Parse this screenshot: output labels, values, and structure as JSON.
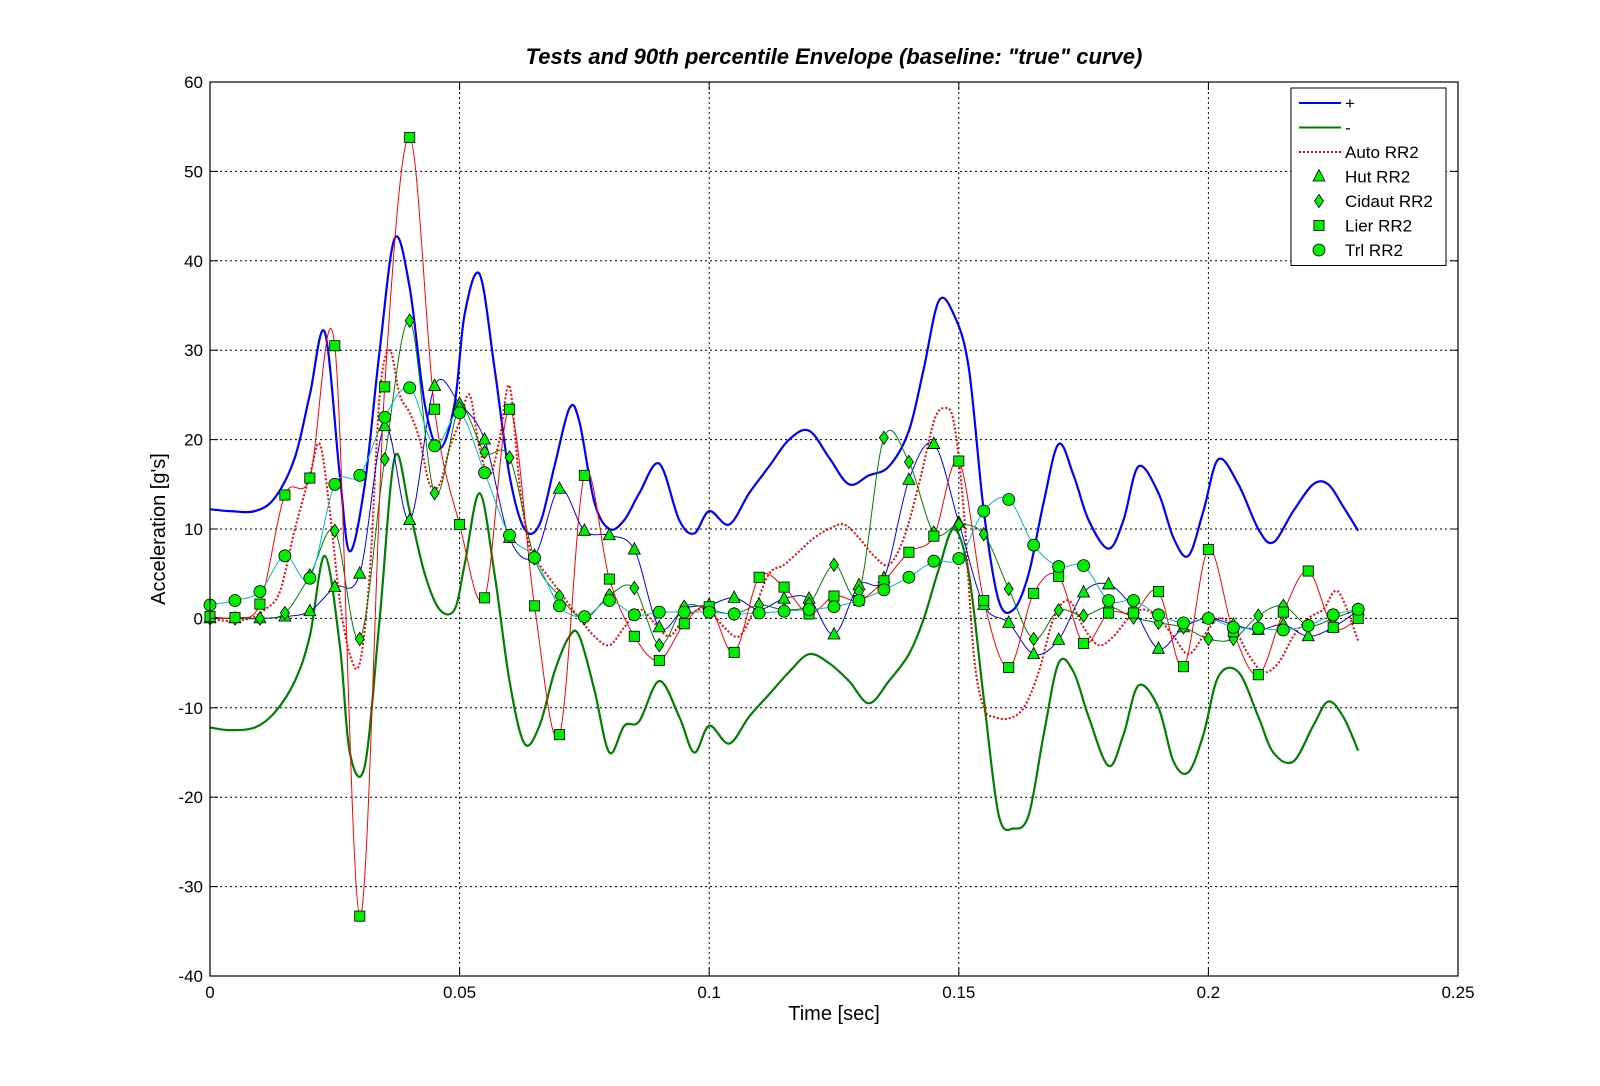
{
  "chart_data": {
    "type": "line",
    "title": "Tests and 90th percentile Envelope (baseline: \"true\" curve)",
    "xlabel": "Time [sec]",
    "ylabel": "Acceleration [g's]",
    "xlim": [
      0,
      0.25
    ],
    "ylim": [
      -40,
      60
    ],
    "xticks": [
      0,
      0.05,
      0.1,
      0.15,
      0.2,
      0.25
    ],
    "xtick_labels": [
      "0",
      "0.05",
      "0.1",
      "0.15",
      "0.2",
      "0.25"
    ],
    "yticks": [
      -40,
      -30,
      -20,
      -10,
      0,
      10,
      20,
      30,
      40,
      50,
      60
    ],
    "ytick_labels": [
      "-40",
      "-30",
      "-20",
      "-10",
      "0",
      "10",
      "20",
      "30",
      "40",
      "50",
      "60"
    ],
    "grid": true,
    "legend_position": "top-right",
    "series": [
      {
        "name": "+",
        "color": "#0000ff",
        "style": "solid",
        "width": 2.2,
        "marker": "none",
        "x": [
          0,
          0.004,
          0.009,
          0.013,
          0.017,
          0.02,
          0.023,
          0.026,
          0.028,
          0.031,
          0.034,
          0.037,
          0.04,
          0.043,
          0.046,
          0.049,
          0.051,
          0.054,
          0.057,
          0.06,
          0.063,
          0.066,
          0.069,
          0.072,
          0.074,
          0.077,
          0.08,
          0.083,
          0.086,
          0.09,
          0.094,
          0.097,
          0.1,
          0.104,
          0.108,
          0.112,
          0.116,
          0.12,
          0.124,
          0.128,
          0.132,
          0.136,
          0.14,
          0.143,
          0.146,
          0.149,
          0.152,
          0.155,
          0.158,
          0.161,
          0.164,
          0.167,
          0.17,
          0.173,
          0.176,
          0.18,
          0.183,
          0.186,
          0.19,
          0.193,
          0.196,
          0.199,
          0.202,
          0.206,
          0.21,
          0.213,
          0.217,
          0.221,
          0.224,
          0.227,
          0.23
        ],
        "y": [
          12.2,
          12,
          12,
          13.5,
          18,
          25,
          32,
          16,
          7.5,
          15,
          30,
          42.5,
          37,
          24,
          19,
          24,
          34,
          38.5,
          28,
          16,
          10,
          10.5,
          17,
          23.5,
          22,
          13,
          10,
          11,
          14,
          17.3,
          11,
          9.5,
          12,
          10.5,
          14,
          17,
          20,
          21,
          18,
          15,
          16,
          17,
          21,
          28,
          35.5,
          34,
          28,
          12,
          2,
          1,
          5,
          13,
          19.5,
          16,
          11,
          7.8,
          11,
          17,
          14,
          9,
          7,
          12,
          17.8,
          15,
          10,
          8.5,
          12,
          15,
          15,
          12.5,
          9.8
        ]
      },
      {
        "name": "-",
        "color": "#007f00",
        "style": "solid",
        "width": 2.2,
        "marker": "none",
        "x": [
          0,
          0.004,
          0.009,
          0.013,
          0.017,
          0.02,
          0.023,
          0.026,
          0.028,
          0.031,
          0.034,
          0.037,
          0.04,
          0.043,
          0.046,
          0.049,
          0.051,
          0.054,
          0.057,
          0.06,
          0.063,
          0.066,
          0.069,
          0.072,
          0.074,
          0.077,
          0.08,
          0.083,
          0.086,
          0.09,
          0.094,
          0.097,
          0.1,
          0.104,
          0.108,
          0.112,
          0.116,
          0.12,
          0.124,
          0.128,
          0.132,
          0.136,
          0.14,
          0.143,
          0.146,
          0.149,
          0.152,
          0.155,
          0.158,
          0.161,
          0.164,
          0.167,
          0.17,
          0.173,
          0.176,
          0.18,
          0.183,
          0.186,
          0.19,
          0.193,
          0.196,
          0.199,
          0.202,
          0.206,
          0.21,
          0.213,
          0.217,
          0.221,
          0.224,
          0.227,
          0.23
        ],
        "y": [
          -12.2,
          -12.5,
          -12.2,
          -10.5,
          -7,
          -2,
          7,
          -3,
          -15,
          -16.5,
          0,
          18,
          12,
          5,
          1,
          1,
          6,
          14,
          5,
          -7,
          -14,
          -12,
          -6,
          -2,
          -2,
          -8,
          -15,
          -12,
          -11.5,
          -7,
          -11,
          -15,
          -12,
          -14,
          -11,
          -8.5,
          -6,
          -4,
          -5,
          -7,
          -9.5,
          -7,
          -4,
          0,
          5.5,
          10,
          5,
          -9,
          -22,
          -23.5,
          -22,
          -13,
          -5,
          -6,
          -11,
          -16.5,
          -13,
          -7.5,
          -10,
          -16,
          -17.2,
          -13,
          -6.5,
          -6,
          -11,
          -15,
          -16,
          -12,
          -9.3,
          -11,
          -14.8
        ]
      },
      {
        "name": "Auto RR2",
        "color": "#ff0000",
        "style": "dotted",
        "width": 2,
        "marker": "none",
        "x": [
          0,
          0.004,
          0.008,
          0.011,
          0.014,
          0.017,
          0.02,
          0.022,
          0.024,
          0.026,
          0.028,
          0.03,
          0.032,
          0.034,
          0.036,
          0.038,
          0.04,
          0.042,
          0.044,
          0.046,
          0.048,
          0.05,
          0.052,
          0.054,
          0.056,
          0.058,
          0.06,
          0.062,
          0.064,
          0.066,
          0.068,
          0.07,
          0.072,
          0.074,
          0.077,
          0.08,
          0.083,
          0.086,
          0.089,
          0.092,
          0.095,
          0.098,
          0.1,
          0.103,
          0.106,
          0.109,
          0.112,
          0.115,
          0.118,
          0.121,
          0.124,
          0.127,
          0.13,
          0.133,
          0.136,
          0.139,
          0.142,
          0.145,
          0.147,
          0.149,
          0.151,
          0.153,
          0.155,
          0.157,
          0.16,
          0.163,
          0.166,
          0.169,
          0.172,
          0.175,
          0.178,
          0.181,
          0.184,
          0.187,
          0.19,
          0.193,
          0.196,
          0.199,
          0.202,
          0.205,
          0.208,
          0.211,
          0.214,
          0.217,
          0.22,
          0.223,
          0.226,
          0.23
        ],
        "y": [
          0,
          -0.3,
          0,
          1,
          3,
          10,
          16,
          19.5,
          12,
          2,
          -4,
          -5,
          5,
          25,
          30,
          25,
          23,
          20,
          15,
          15,
          19,
          22,
          25,
          19,
          16,
          20,
          26,
          15,
          8,
          6,
          4.5,
          3,
          1.5,
          0,
          -2,
          -3,
          -1,
          1,
          -0.5,
          -2,
          0,
          1,
          1,
          -1,
          -2,
          1,
          5,
          6,
          7.5,
          9,
          10,
          10.5,
          9,
          7,
          6,
          9,
          15,
          22,
          23.5,
          22,
          12,
          -4,
          -10,
          -11,
          -11.2,
          -10,
          -6,
          0,
          2,
          -1,
          -3,
          -2,
          0,
          1,
          0,
          -2,
          -4,
          -2,
          0,
          -1,
          -4,
          -6,
          -5,
          -2,
          0,
          1,
          3,
          -2.5
        ]
      },
      {
        "name": "Hut RR2",
        "color": "#0000ff",
        "marker": "triangle",
        "style": "solid",
        "width": 1,
        "marker_every": 1,
        "x": [
          0,
          0.005,
          0.01,
          0.015,
          0.02,
          0.025,
          0.03,
          0.035,
          0.04,
          0.045,
          0.05,
          0.055,
          0.06,
          0.065,
          0.07,
          0.075,
          0.08,
          0.085,
          0.09,
          0.095,
          0.1,
          0.105,
          0.11,
          0.115,
          0.12,
          0.125,
          0.13,
          0.135,
          0.14,
          0.145,
          0.15,
          0.155,
          0.16,
          0.165,
          0.17,
          0.175,
          0.18,
          0.185,
          0.19,
          0.195,
          0.2,
          0.205,
          0.21,
          0.215,
          0.22,
          0.225,
          0.23
        ],
        "y": [
          0,
          0,
          0,
          0.2,
          0.8,
          3.5,
          5,
          21.5,
          11,
          26,
          24,
          20,
          9,
          7,
          14.5,
          9.8,
          9.3,
          7.7,
          -1,
          1.1,
          1.5,
          2.3,
          1,
          2.2,
          2.2,
          -1.8,
          3.7,
          4.5,
          15.5,
          19.5,
          10.7,
          1.5,
          -0.5,
          -4,
          -2.4,
          2.9,
          3.8,
          1.1,
          -3.4,
          -1,
          0,
          -0.7,
          -1.3,
          -0.7,
          -2,
          -1,
          0.9
        ]
      },
      {
        "name": "Cidaut RR2",
        "color": "#007f00",
        "marker": "diamond",
        "style": "solid",
        "width": 1,
        "marker_every": 1,
        "x": [
          0,
          0.005,
          0.01,
          0.015,
          0.02,
          0.025,
          0.03,
          0.035,
          0.04,
          0.045,
          0.05,
          0.055,
          0.06,
          0.065,
          0.07,
          0.075,
          0.08,
          0.085,
          0.09,
          0.095,
          0.1,
          0.105,
          0.11,
          0.115,
          0.12,
          0.125,
          0.13,
          0.135,
          0.14,
          0.145,
          0.15,
          0.155,
          0.16,
          0.165,
          0.17,
          0.175,
          0.18,
          0.185,
          0.19,
          0.195,
          0.2,
          0.205,
          0.21,
          0.215,
          0.22,
          0.225,
          0.23
        ],
        "y": [
          0,
          0,
          0,
          0.6,
          4.8,
          9.8,
          -2.3,
          17.8,
          33.3,
          14,
          23.5,
          18.6,
          18,
          6.7,
          2.5,
          0,
          2.6,
          3.4,
          -3,
          1.3,
          1,
          0.5,
          1.5,
          1,
          1.6,
          6,
          3,
          20.2,
          17.5,
          9.6,
          10.5,
          9.4,
          3.3,
          -2.3,
          0.9,
          0.3,
          1.3,
          0.1,
          -0.5,
          -1,
          -2.3,
          -2.3,
          0.3,
          1.4,
          -0.8,
          0,
          1
        ]
      },
      {
        "name": "Lier RR2",
        "color": "#ff0000",
        "marker": "square",
        "style": "solid",
        "width": 1,
        "marker_every": 1,
        "x": [
          0,
          0.005,
          0.01,
          0.015,
          0.02,
          0.025,
          0.03,
          0.035,
          0.04,
          0.045,
          0.05,
          0.055,
          0.06,
          0.065,
          0.07,
          0.075,
          0.08,
          0.085,
          0.09,
          0.095,
          0.1,
          0.105,
          0.11,
          0.115,
          0.12,
          0.125,
          0.13,
          0.135,
          0.14,
          0.145,
          0.15,
          0.155,
          0.16,
          0.165,
          0.17,
          0.175,
          0.18,
          0.185,
          0.19,
          0.195,
          0.2,
          0.205,
          0.21,
          0.215,
          0.22,
          0.225,
          0.23
        ],
        "y": [
          0.2,
          0.1,
          1.6,
          13.8,
          15.7,
          30.5,
          -33.3,
          25.9,
          53.8,
          23.4,
          10.5,
          2.3,
          23.4,
          1.4,
          -13,
          16,
          4.4,
          -2,
          -4.7,
          -0.6,
          1.3,
          -3.8,
          4.6,
          3.5,
          0.5,
          2.5,
          2,
          4.2,
          7.4,
          9.2,
          17.6,
          2,
          -5.5,
          2.8,
          4.7,
          -2.8,
          0.6,
          0.6,
          3,
          -5.4,
          7.7,
          -1.5,
          -6.3,
          0.7,
          5.3,
          -1,
          0
        ]
      },
      {
        "name": "Trl RR2",
        "color": "#00bfbf",
        "marker": "circle",
        "style": "solid",
        "width": 1,
        "marker_every": 1,
        "x": [
          0,
          0.005,
          0.01,
          0.015,
          0.02,
          0.025,
          0.03,
          0.035,
          0.04,
          0.045,
          0.05,
          0.055,
          0.06,
          0.065,
          0.07,
          0.075,
          0.08,
          0.085,
          0.09,
          0.095,
          0.1,
          0.105,
          0.11,
          0.115,
          0.12,
          0.125,
          0.13,
          0.135,
          0.14,
          0.145,
          0.15,
          0.155,
          0.16,
          0.165,
          0.17,
          0.175,
          0.18,
          0.185,
          0.19,
          0.195,
          0.2,
          0.205,
          0.21,
          0.215,
          0.22,
          0.225,
          0.23
        ],
        "y": [
          1.5,
          2,
          3,
          7,
          4.5,
          15,
          16,
          22.5,
          25.8,
          19.3,
          23,
          16.3,
          9.3,
          6.8,
          1.4,
          0.2,
          2,
          0.4,
          0.7,
          0.7,
          0.7,
          0.5,
          0.6,
          0.8,
          1,
          1.3,
          2,
          3.2,
          4.6,
          6.4,
          6.7,
          12,
          13.3,
          8.2,
          5.8,
          5.9,
          2,
          2,
          0.4,
          -0.5,
          0,
          -1,
          -1.1,
          -1.3,
          -0.8,
          0.4,
          1
        ]
      }
    ]
  }
}
